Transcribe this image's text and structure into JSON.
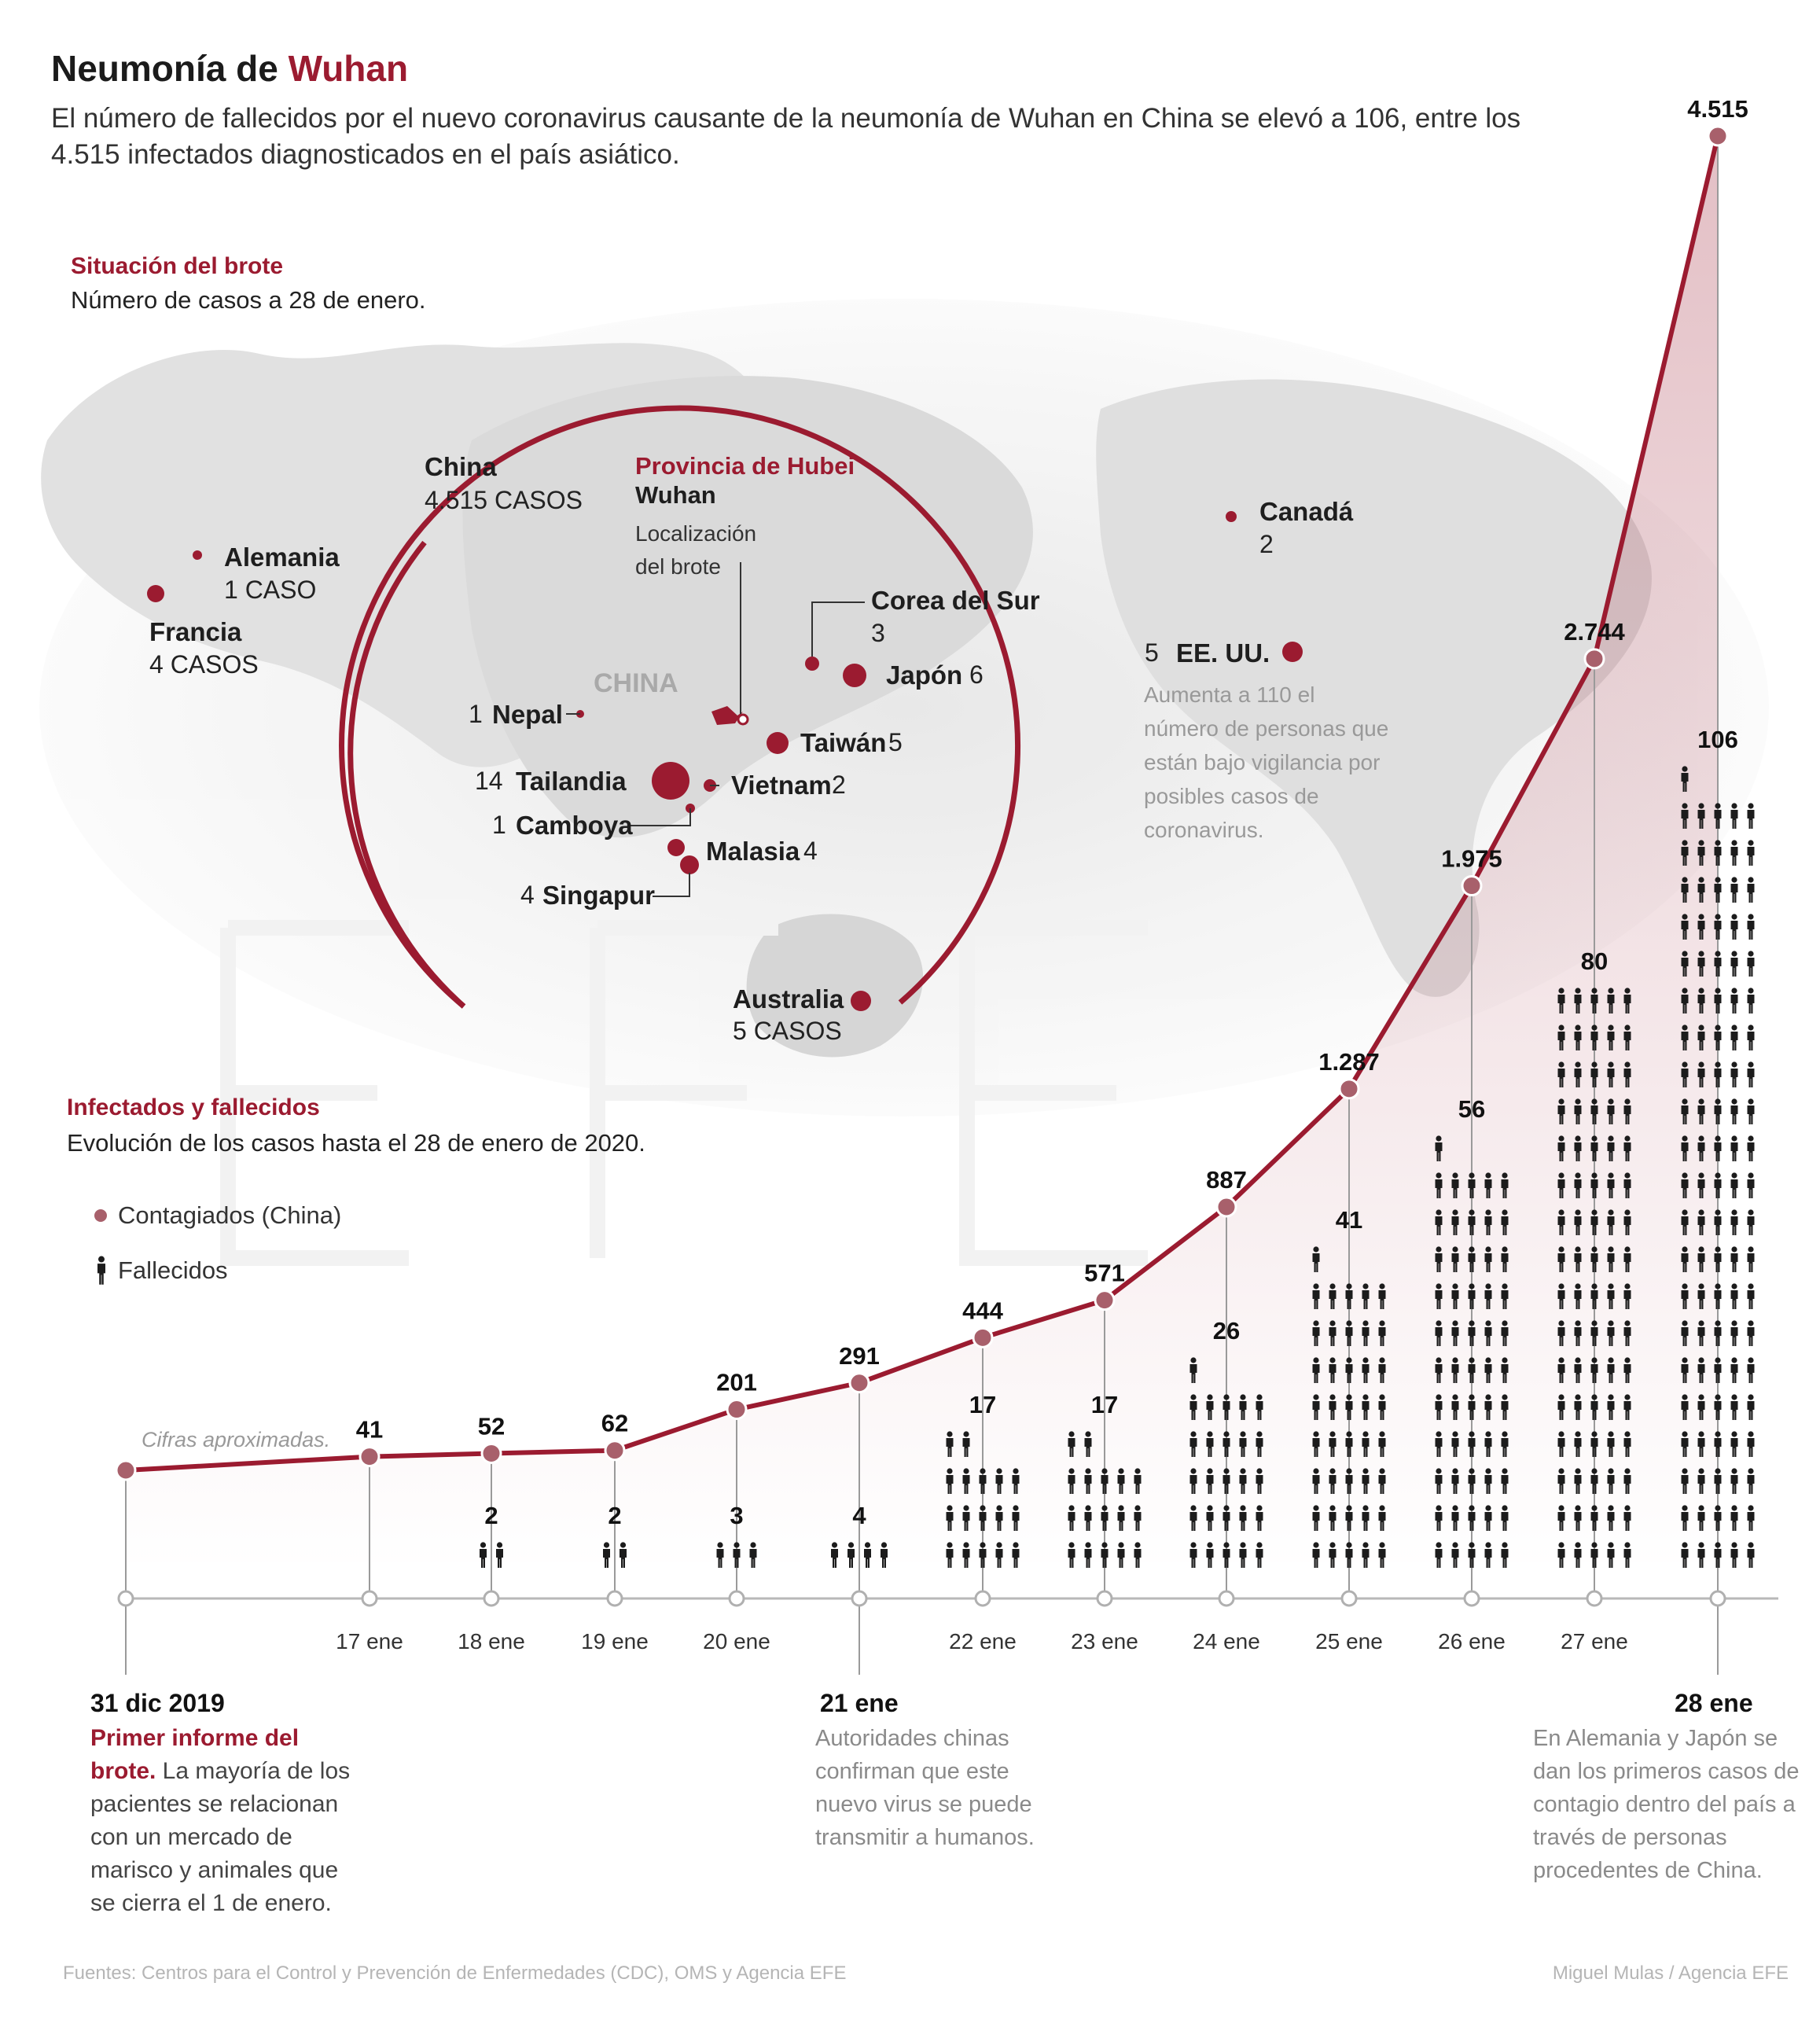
{
  "header": {
    "title_prefix": "Neumonía de ",
    "title_accent": "Wuhan",
    "subtitle": "El número de fallecidos por el nuevo coronavirus causante de la neumonía de Wuhan en China se elevó a 106, entre los 4.515 infectados diagnosticados en el país asiático."
  },
  "map_section": {
    "title": "Situación del brote",
    "subtitle": "Número de casos a 28 de enero.",
    "china_label": "China",
    "china_cases": "4.515 CASOS",
    "china_map_text": "CHINA",
    "hubei_label": "Provincia de Hubei",
    "wuhan_label": "Wuhan",
    "wuhan_note": "Localización del brote",
    "countries": [
      {
        "name": "Alemania",
        "count": "1 CASO"
      },
      {
        "name": "Francia",
        "count": "4 CASOS"
      },
      {
        "name": "Canadá",
        "count": "2"
      },
      {
        "name": "EE. UU.",
        "count": "5"
      },
      {
        "name": "Corea del Sur",
        "count": "3"
      },
      {
        "name": "Japón",
        "count": "6"
      },
      {
        "name": "Taiwán",
        "count": "5"
      },
      {
        "name": "Nepal",
        "count": "1"
      },
      {
        "name": "Tailandia",
        "count": "14"
      },
      {
        "name": "Vietnam",
        "count": "2"
      },
      {
        "name": "Camboya",
        "count": "1"
      },
      {
        "name": "Malasia",
        "count": "4"
      },
      {
        "name": "Singapur",
        "count": "4"
      },
      {
        "name": "Australia",
        "count": "5 CASOS"
      }
    ],
    "usa_note": "Aumenta a 110 el número de personas que están bajo vigilancia por posibles casos de coronavirus."
  },
  "chart_section": {
    "title": "Infectados y fallecidos",
    "subtitle": "Evolución de los casos hasta el 28 de enero de 2020.",
    "legend_infected": "Contagiados (China)",
    "legend_deaths": "Fallecidos",
    "approx_note": "Cifras aproximadas."
  },
  "chart_data": {
    "type": "line",
    "title": "Infectados y fallecidos",
    "subtitle": "Evolución de los casos hasta el 28 de enero de 2020.",
    "categories": [
      "31 dic 2019",
      "17 ene",
      "18 ene",
      "19 ene",
      "20 ene",
      "21 ene",
      "22 ene",
      "23 ene",
      "24 ene",
      "25 ene",
      "26 ene",
      "27 ene",
      "28 ene"
    ],
    "series": [
      {
        "name": "Contagiados (China)",
        "values": [
          null,
          41,
          52,
          62,
          201,
          291,
          444,
          571,
          887,
          1287,
          1975,
          2744,
          4515
        ],
        "labels": [
          "",
          "41",
          "52",
          "62",
          "201",
          "291",
          "444",
          "571",
          "887",
          "1.287",
          "1.975",
          "2.744",
          "4.515"
        ]
      },
      {
        "name": "Fallecidos",
        "values": [
          null,
          null,
          2,
          2,
          3,
          4,
          17,
          17,
          26,
          41,
          56,
          80,
          106
        ],
        "labels": [
          "",
          "",
          "2",
          "2",
          "3",
          "4",
          "17",
          "17",
          "26",
          "41",
          "56",
          "80",
          "106"
        ]
      }
    ],
    "ylim": [
      0,
      4600
    ],
    "accent_color": "#9b1b30"
  },
  "annotations": {
    "start_date": "31 dic 2019",
    "start_highlight": "Primer informe del brote.",
    "start_text": " La mayoría de los pacientes se relacionan con un mercado de marisco y animales que se cierra el 1 de enero.",
    "mid_date": "21 ene",
    "mid_text": "Autoridades chinas confirman que este nuevo virus se puede transmitir a humanos.",
    "end_date": "28 ene",
    "end_text": "En Alemania y Japón se dan los primeros casos de contagio dentro del país a través de personas procedentes de China."
  },
  "footer": {
    "sources": "Fuentes: Centros para el Control y Prevención de Enfermedades (CDC), OMS y Agencia EFE",
    "credit": "Miguel Mulas / Agencia EFE"
  }
}
